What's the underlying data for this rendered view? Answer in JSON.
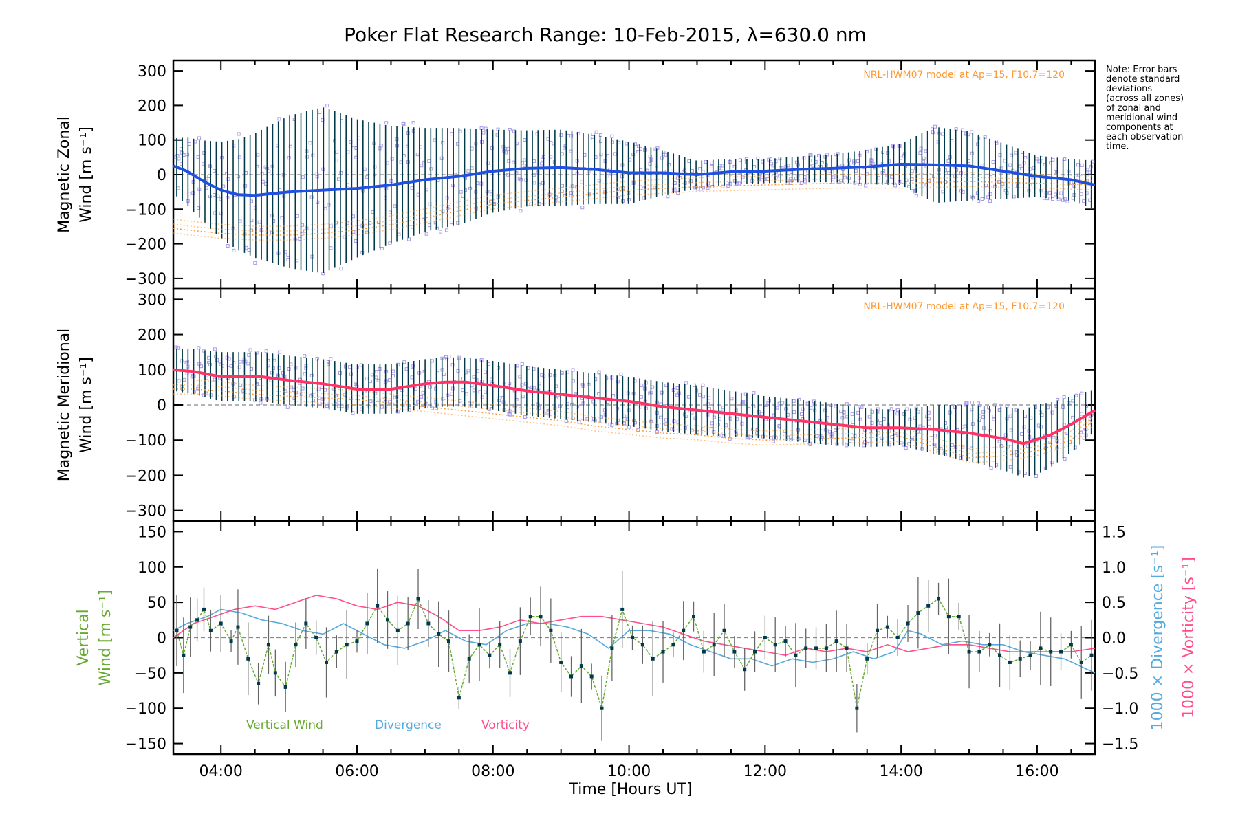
{
  "title": "Poker Flat Research Range: 10-Feb-2015, λ=630.0 nm",
  "note": [
    "Note: Error bars",
    "denote standard",
    "deviations",
    "(across all zones)",
    "of zonal and",
    "meridional wind",
    "components at",
    "each observation",
    "time."
  ],
  "model_label": "NRL-HWM07 model at Ap=15, F10.7=120",
  "xlabel": "Time [Hours UT]",
  "colors": {
    "zonal_mean": "#2050e0",
    "meridional_mean": "#ff3366",
    "zone_points": "#a89be8",
    "model": "#ff9933",
    "error_bar": "#003a4a",
    "vertical": "#66aa33",
    "divergence": "#55aadd",
    "vorticity": "#ff4f8b",
    "zero_line": "#888888"
  },
  "chart_data": [
    {
      "type": "line",
      "panel": "zonal",
      "ylabel_lines": [
        "Magnetic Zonal",
        "Wind [m s⁻¹]"
      ],
      "ylim": [
        -330,
        330
      ],
      "yticks": [
        300,
        200,
        100,
        0,
        -100,
        -200,
        -300
      ],
      "x_range_hours": [
        3.3,
        16.85
      ],
      "model_label": "NRL-HWM07 model at Ap=15, F10.7=120",
      "series": [
        {
          "role": "mean",
          "x": [
            3.3,
            3.5,
            3.75,
            4.0,
            4.25,
            4.5,
            5.0,
            5.5,
            6.0,
            6.5,
            7.0,
            7.5,
            8.0,
            8.5,
            9.0,
            9.5,
            10.0,
            10.5,
            11.0,
            11.5,
            12.0,
            12.5,
            13.0,
            13.5,
            14.0,
            14.5,
            15.0,
            15.5,
            16.0,
            16.5,
            16.85
          ],
          "y": [
            25,
            10,
            -20,
            -45,
            -58,
            -60,
            -50,
            -45,
            -40,
            -30,
            -15,
            -5,
            10,
            18,
            20,
            15,
            5,
            5,
            0,
            8,
            10,
            15,
            18,
            22,
            30,
            28,
            25,
            10,
            -5,
            -15,
            -30
          ]
        },
        {
          "role": "error_half_width",
          "x": [
            3.3,
            4.0,
            4.5,
            5.0,
            5.5,
            6.0,
            6.5,
            7.0,
            7.5,
            8.0,
            8.5,
            9.0,
            9.5,
            10.0,
            11.0,
            12.0,
            13.0,
            14.0,
            14.5,
            15.0,
            15.5,
            16.0,
            16.5,
            16.85
          ],
          "y": [
            80,
            140,
            180,
            220,
            240,
            200,
            170,
            150,
            140,
            120,
            110,
            110,
            100,
            90,
            40,
            35,
            40,
            60,
            110,
            100,
            80,
            60,
            60,
            70
          ]
        },
        {
          "role": "model",
          "x": [
            3.3,
            3.5,
            4.0,
            4.5,
            5.0,
            5.5,
            6.0,
            6.5,
            7.0,
            7.5,
            8.0,
            8.5,
            9.0,
            9.5,
            10.0,
            11.0,
            12.0,
            13.0,
            14.0,
            15.0,
            16.0,
            16.85
          ],
          "y": [
            -155,
            -160,
            -170,
            -175,
            -175,
            -170,
            -160,
            -145,
            -125,
            -105,
            -85,
            -75,
            -65,
            -55,
            -45,
            -35,
            -30,
            -25,
            -25,
            -20,
            -25,
            -30
          ]
        }
      ]
    },
    {
      "type": "line",
      "panel": "meridional",
      "ylabel_lines": [
        "Magnetic Meridional",
        "Wind [m s⁻¹]"
      ],
      "ylim": [
        -330,
        330
      ],
      "yticks": [
        300,
        200,
        100,
        0,
        -100,
        -200,
        -300
      ],
      "x_range_hours": [
        3.3,
        16.85
      ],
      "model_label": "NRL-HWM07 model at Ap=15, F10.7=120",
      "series": [
        {
          "role": "mean",
          "x": [
            3.3,
            3.6,
            4.0,
            4.3,
            4.6,
            5.0,
            5.5,
            6.0,
            6.5,
            7.0,
            7.3,
            7.6,
            8.0,
            8.5,
            9.0,
            9.5,
            10.0,
            10.5,
            11.0,
            11.5,
            12.0,
            12.5,
            13.0,
            13.5,
            14.0,
            14.5,
            15.0,
            15.5,
            15.8,
            16.2,
            16.5,
            16.85
          ],
          "y": [
            100,
            95,
            80,
            80,
            80,
            70,
            60,
            45,
            45,
            60,
            65,
            65,
            55,
            40,
            30,
            20,
            10,
            -5,
            -15,
            -25,
            -35,
            -45,
            -55,
            -65,
            -65,
            -70,
            -80,
            -95,
            -110,
            -85,
            -55,
            -15
          ]
        },
        {
          "role": "error_half_width",
          "x": [
            3.3,
            4.0,
            5.0,
            6.0,
            7.0,
            8.0,
            9.0,
            10.0,
            11.0,
            12.0,
            13.0,
            14.0,
            14.5,
            15.0,
            15.5,
            16.0,
            16.5,
            16.85
          ],
          "y": [
            60,
            70,
            70,
            70,
            70,
            70,
            70,
            70,
            70,
            60,
            60,
            50,
            70,
            80,
            90,
            100,
            80,
            60
          ]
        },
        {
          "role": "model",
          "x": [
            3.3,
            3.6,
            4.0,
            4.5,
            5.0,
            5.5,
            6.0,
            6.5,
            7.0,
            7.5,
            8.0,
            8.5,
            9.0,
            9.5,
            10.0,
            10.5,
            11.0,
            11.5,
            12.0,
            13.0,
            14.0,
            14.5,
            15.0,
            15.5,
            16.0,
            16.5,
            16.85
          ],
          "y": [
            45,
            45,
            40,
            30,
            25,
            20,
            15,
            5,
            -5,
            -15,
            -25,
            -35,
            -45,
            -60,
            -70,
            -80,
            -85,
            -95,
            -100,
            -95,
            -90,
            -120,
            -150,
            -145,
            -130,
            -100,
            -40
          ]
        }
      ]
    },
    {
      "type": "line",
      "panel": "vertical",
      "ylabel_lines": [
        "Vertical",
        "Wind [m s⁻¹]"
      ],
      "ylim": [
        -165,
        165
      ],
      "yticks": [
        150,
        100,
        50,
        0,
        -50,
        -100,
        -150
      ],
      "y2label_lines": [
        "1000 × Divergence [s⁻¹]",
        "1000 × Vorticity [s⁻¹]"
      ],
      "y2lim": [
        -1.65,
        1.65
      ],
      "y2ticks": [
        "1.5",
        "1.0",
        "0.5",
        "0.0",
        "−0.5",
        "−1.0",
        "−1.5"
      ],
      "y2tick_values": [
        1.5,
        1.0,
        0.5,
        0.0,
        -0.5,
        -1.0,
        -1.5
      ],
      "xticks": [
        "04:00",
        "06:00",
        "08:00",
        "10:00",
        "12:00",
        "14:00",
        "16:00"
      ],
      "xtick_values": [
        4,
        6,
        8,
        10,
        12,
        14,
        16
      ],
      "x_range_hours": [
        3.3,
        16.85
      ],
      "legend": [
        "Vertical Wind",
        "Divergence",
        "Vorticity"
      ],
      "series": [
        {
          "name": "Vertical Wind",
          "x": [
            3.35,
            3.45,
            3.55,
            3.65,
            3.75,
            3.85,
            4.0,
            4.15,
            4.25,
            4.4,
            4.55,
            4.7,
            4.8,
            4.95,
            5.1,
            5.25,
            5.4,
            5.55,
            5.7,
            5.85,
            6.0,
            6.15,
            6.3,
            6.45,
            6.6,
            6.75,
            6.9,
            7.05,
            7.2,
            7.35,
            7.5,
            7.65,
            7.8,
            7.95,
            8.1,
            8.25,
            8.4,
            8.55,
            8.7,
            8.85,
            9.0,
            9.15,
            9.3,
            9.45,
            9.6,
            9.75,
            9.9,
            10.05,
            10.2,
            10.35,
            10.5,
            10.65,
            10.8,
            10.95,
            11.1,
            11.25,
            11.4,
            11.55,
            11.7,
            11.85,
            12.0,
            12.15,
            12.3,
            12.45,
            12.6,
            12.75,
            12.9,
            13.05,
            13.2,
            13.35,
            13.5,
            13.65,
            13.8,
            13.95,
            14.1,
            14.25,
            14.4,
            14.55,
            14.7,
            14.85,
            15.0,
            15.15,
            15.3,
            15.45,
            15.6,
            15.75,
            15.9,
            16.05,
            16.2,
            16.35,
            16.5,
            16.65,
            16.8
          ],
          "y": [
            10,
            -25,
            15,
            25,
            40,
            10,
            20,
            -5,
            15,
            -30,
            -65,
            -10,
            -50,
            -70,
            -10,
            20,
            0,
            -35,
            -20,
            -10,
            -5,
            20,
            45,
            25,
            10,
            20,
            55,
            20,
            5,
            -5,
            -85,
            -30,
            -10,
            -25,
            -10,
            -50,
            -5,
            30,
            30,
            10,
            -35,
            -55,
            -40,
            -55,
            -100,
            -15,
            40,
            0,
            -10,
            -30,
            -20,
            -10,
            10,
            30,
            -20,
            -10,
            10,
            -20,
            -45,
            -20,
            0,
            -10,
            -5,
            -25,
            -15,
            -15,
            -15,
            -5,
            -15,
            -100,
            -30,
            10,
            15,
            0,
            20,
            35,
            45,
            55,
            30,
            30,
            -20,
            -20,
            -10,
            -25,
            -35,
            -30,
            -25,
            -15,
            -20,
            -20,
            -10,
            -35,
            -25
          ]
        },
        {
          "name": "Divergence",
          "axis": "y2",
          "x": [
            3.3,
            3.5,
            3.8,
            4.0,
            4.3,
            4.6,
            4.9,
            5.2,
            5.5,
            5.8,
            6.1,
            6.4,
            6.7,
            7.0,
            7.3,
            7.6,
            7.9,
            8.2,
            8.5,
            8.8,
            9.1,
            9.4,
            9.7,
            10.0,
            10.3,
            10.6,
            10.9,
            11.2,
            11.5,
            11.8,
            12.1,
            12.4,
            12.7,
            13.0,
            13.3,
            13.6,
            13.9,
            14.1,
            14.3,
            14.6,
            14.9,
            15.2,
            15.5,
            15.8,
            16.1,
            16.4,
            16.85
          ],
          "y": [
            0.1,
            0.2,
            0.3,
            0.4,
            0.35,
            0.25,
            0.2,
            0.1,
            0.05,
            0.2,
            0.05,
            -0.1,
            -0.15,
            -0.05,
            0.1,
            -0.05,
            -0.1,
            0.1,
            0.2,
            0.2,
            0.15,
            0.05,
            -0.15,
            0.1,
            0.1,
            0.05,
            -0.1,
            -0.2,
            -0.3,
            -0.3,
            -0.4,
            -0.3,
            -0.35,
            -0.3,
            -0.2,
            -0.3,
            -0.2,
            0.1,
            0.05,
            -0.1,
            -0.05,
            -0.1,
            -0.1,
            -0.2,
            -0.25,
            -0.3,
            -0.5
          ]
        },
        {
          "name": "Vorticity",
          "axis": "y2",
          "x": [
            3.3,
            3.6,
            3.9,
            4.2,
            4.5,
            4.8,
            5.1,
            5.4,
            5.7,
            6.0,
            6.3,
            6.6,
            6.9,
            7.2,
            7.5,
            7.8,
            8.1,
            8.4,
            8.7,
            9.0,
            9.3,
            9.6,
            9.9,
            10.2,
            10.5,
            10.8,
            11.1,
            11.4,
            11.7,
            12.0,
            12.3,
            12.6,
            12.9,
            13.2,
            13.5,
            13.8,
            14.1,
            14.4,
            14.7,
            15.0,
            15.3,
            15.6,
            15.9,
            16.2,
            16.5,
            16.85
          ],
          "y": [
            0.0,
            0.2,
            0.3,
            0.4,
            0.45,
            0.4,
            0.5,
            0.6,
            0.55,
            0.45,
            0.4,
            0.5,
            0.45,
            0.3,
            0.1,
            0.1,
            0.15,
            0.25,
            0.2,
            0.25,
            0.3,
            0.3,
            0.25,
            0.2,
            0.15,
            0.05,
            -0.05,
            -0.1,
            -0.15,
            -0.2,
            -0.25,
            -0.15,
            -0.2,
            -0.15,
            -0.2,
            -0.1,
            -0.2,
            -0.15,
            -0.1,
            -0.1,
            -0.15,
            -0.2,
            -0.2,
            -0.2,
            -0.2,
            -0.15
          ]
        }
      ]
    }
  ]
}
